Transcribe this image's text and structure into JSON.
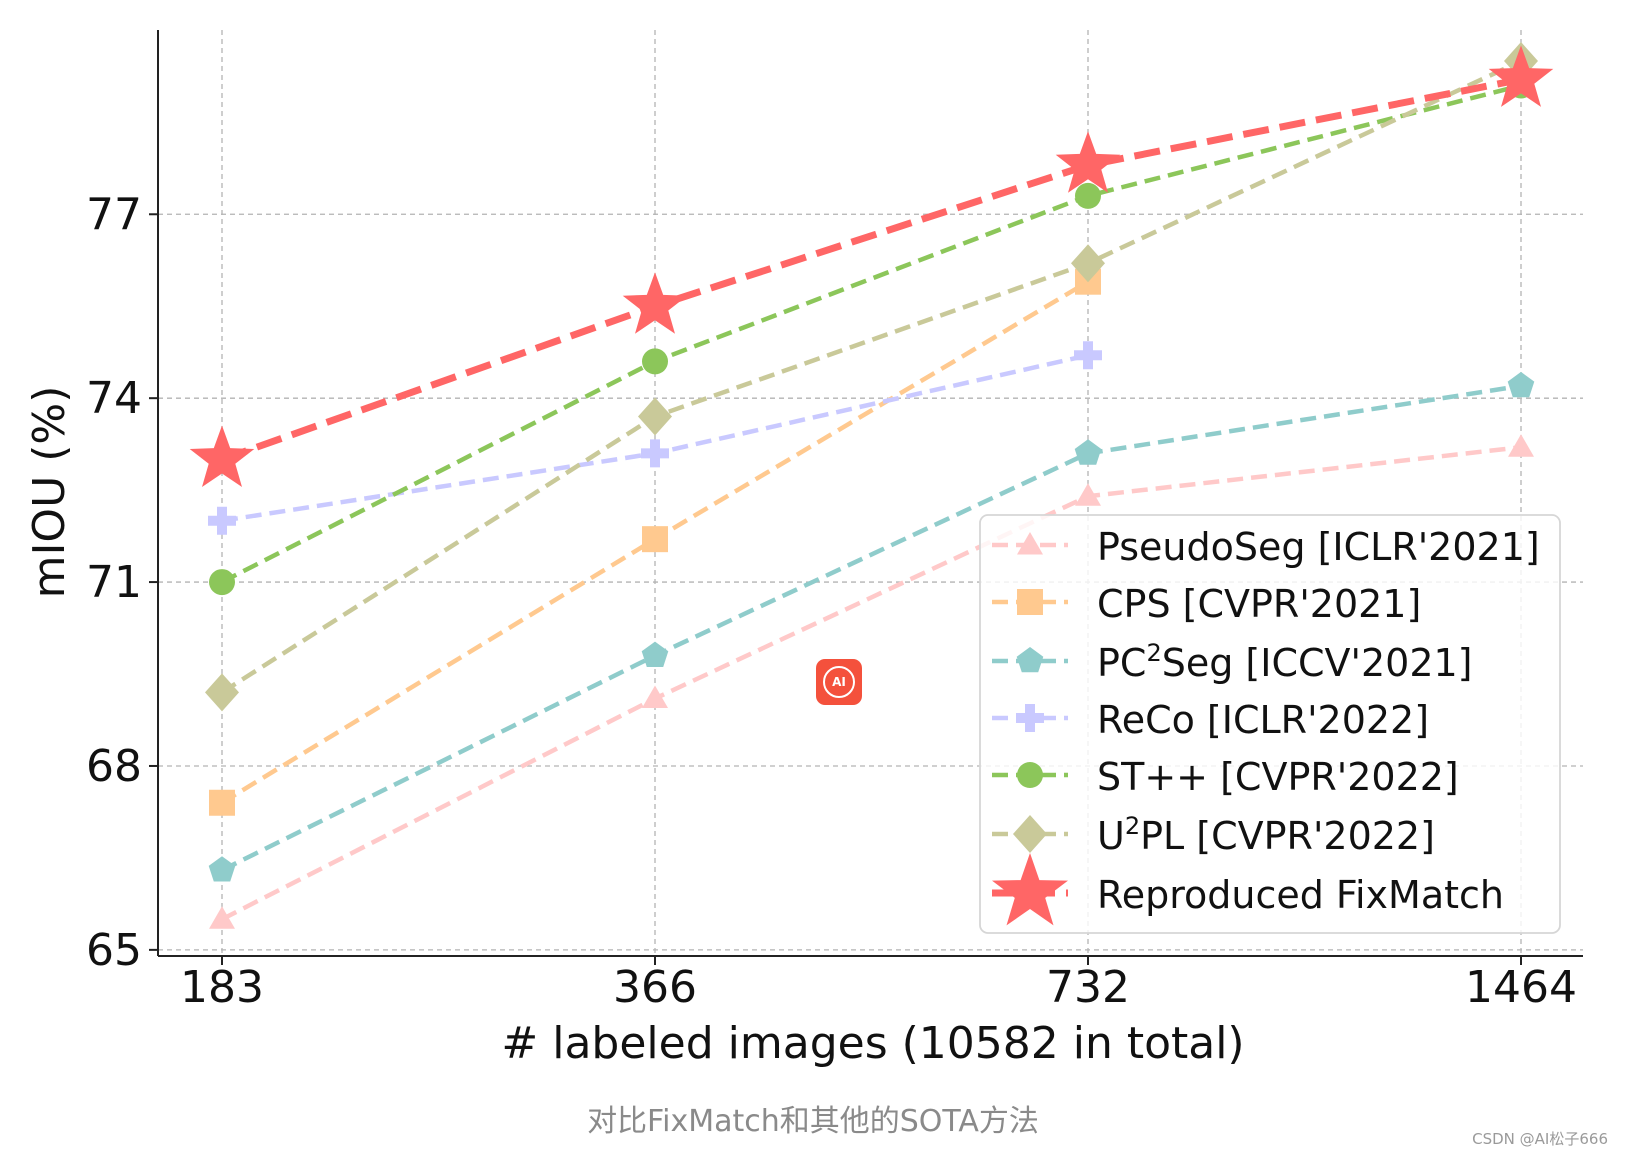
{
  "chart_data": {
    "type": "line",
    "title": "",
    "xlabel": "# labeled images (10582 in total)",
    "ylabel": "mIOU (%)",
    "categories": [
      "183",
      "366",
      "732",
      "1464"
    ],
    "yticks": [
      "65",
      "68",
      "71",
      "74",
      "77"
    ],
    "ylim": [
      64.9,
      80.2
    ],
    "grid": true,
    "legend_position": "lower-right",
    "series": [
      {
        "name": "PseudoSeg [ICLR'2021]",
        "marker": "triangle",
        "color": "#ffc9c9",
        "values": [
          65.5,
          69.1,
          72.4,
          73.2
        ]
      },
      {
        "name": "CPS [CVPR'2021]",
        "marker": "square",
        "color": "#ffc98f",
        "values": [
          67.4,
          71.7,
          75.9,
          null
        ]
      },
      {
        "name": "PC²Seg [ICCV'2021]",
        "name_base": "PC",
        "name_sup": "2",
        "name_rest": "Seg [ICCV'2021]",
        "marker": "pentagon",
        "color": "#8fcccb",
        "values": [
          66.3,
          69.8,
          73.1,
          74.2
        ]
      },
      {
        "name": "ReCo [ICLR'2022]",
        "marker": "plus",
        "color": "#c9c9ff",
        "values": [
          72.0,
          73.1,
          74.7,
          null
        ]
      },
      {
        "name": "ST++ [CVPR'2022]",
        "marker": "circle",
        "color": "#8cc65a",
        "values": [
          71.0,
          74.6,
          77.3,
          79.1
        ]
      },
      {
        "name": "U²PL [CVPR'2022]",
        "name_base": "U",
        "name_sup": "2",
        "name_rest": "PL [CVPR'2022]",
        "marker": "diamond",
        "color": "#c9c999",
        "values": [
          69.2,
          73.7,
          76.2,
          79.5
        ]
      },
      {
        "name": "Reproduced FixMatch",
        "marker": "star",
        "color": "#ff6666",
        "values": [
          73.0,
          75.5,
          77.8,
          79.2
        ]
      }
    ]
  },
  "caption": "对比FixMatch和其他的SOTA方法",
  "watermark": "CSDN @AI松子666",
  "app_badge": {
    "icon": "ai-chat-icon",
    "label": "AI",
    "color": "#f4513c"
  }
}
